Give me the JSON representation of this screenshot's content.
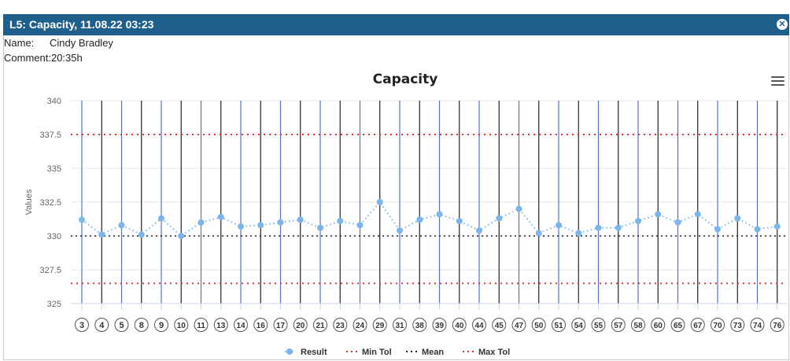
{
  "window": {
    "title": "L5: Capacity, 11.08.22 03:23",
    "close_icon": "close-circle-icon"
  },
  "info": {
    "name_label": "Name:",
    "name_value": "Cindy Bradley",
    "comment_label": "Comment:",
    "comment_value": "20:35h"
  },
  "menu": {
    "icon": "hamburger-menu-icon"
  },
  "colors": {
    "titlebar": "#1f5f8b",
    "result": "#7cb5ec",
    "tolerance": "#d9363e",
    "mean": "#222222",
    "grid": "#e6e6e6",
    "vline_blue": "#5b6fcf",
    "vline_black": "#222222"
  },
  "chart_data": {
    "type": "line",
    "title": "Capacity",
    "ylabel": "Values",
    "xlabel": "",
    "ylim": [
      325,
      340
    ],
    "yticks": [
      "325",
      "327.5",
      "330",
      "332.5",
      "335",
      "337.5",
      "340"
    ],
    "categories": [
      "3",
      "4",
      "5",
      "8",
      "9",
      "10",
      "11",
      "13",
      "14",
      "16",
      "17",
      "20",
      "21",
      "23",
      "24",
      "29",
      "31",
      "38",
      "39",
      "40",
      "44",
      "45",
      "47",
      "50",
      "51",
      "54",
      "55",
      "57",
      "58",
      "60",
      "65",
      "67",
      "70",
      "73",
      "74",
      "76"
    ],
    "grid": true,
    "legend_position": "bottom-center",
    "series": [
      {
        "name": "Result",
        "values": [
          331.2,
          330.1,
          330.8,
          330.1,
          331.3,
          330.0,
          331.0,
          331.4,
          330.7,
          330.8,
          331.0,
          331.2,
          330.6,
          331.1,
          330.8,
          332.5,
          330.4,
          331.2,
          331.6,
          331.1,
          330.4,
          331.3,
          332.0,
          330.2,
          330.8,
          330.2,
          330.6,
          330.6,
          331.1,
          331.6,
          331.0,
          331.6,
          330.5,
          331.3,
          330.5,
          330.7
        ]
      },
      {
        "name": "Min Tol",
        "value": 326.5
      },
      {
        "name": "Mean",
        "value": 330.0
      },
      {
        "name": "Max Tol",
        "value": 337.5
      }
    ],
    "vline_colors": [
      "blue",
      "black",
      "blue",
      "black",
      "blue",
      "black",
      "blue",
      "black",
      "blue",
      "black",
      "blue",
      "black",
      "blue",
      "black",
      "blue",
      "black",
      "blue",
      "black",
      "blue",
      "black",
      "blue",
      "black",
      "blue",
      "black",
      "blue",
      "black",
      "blue",
      "black",
      "blue",
      "black",
      "blue",
      "black",
      "blue",
      "black",
      "blue",
      "black"
    ]
  }
}
